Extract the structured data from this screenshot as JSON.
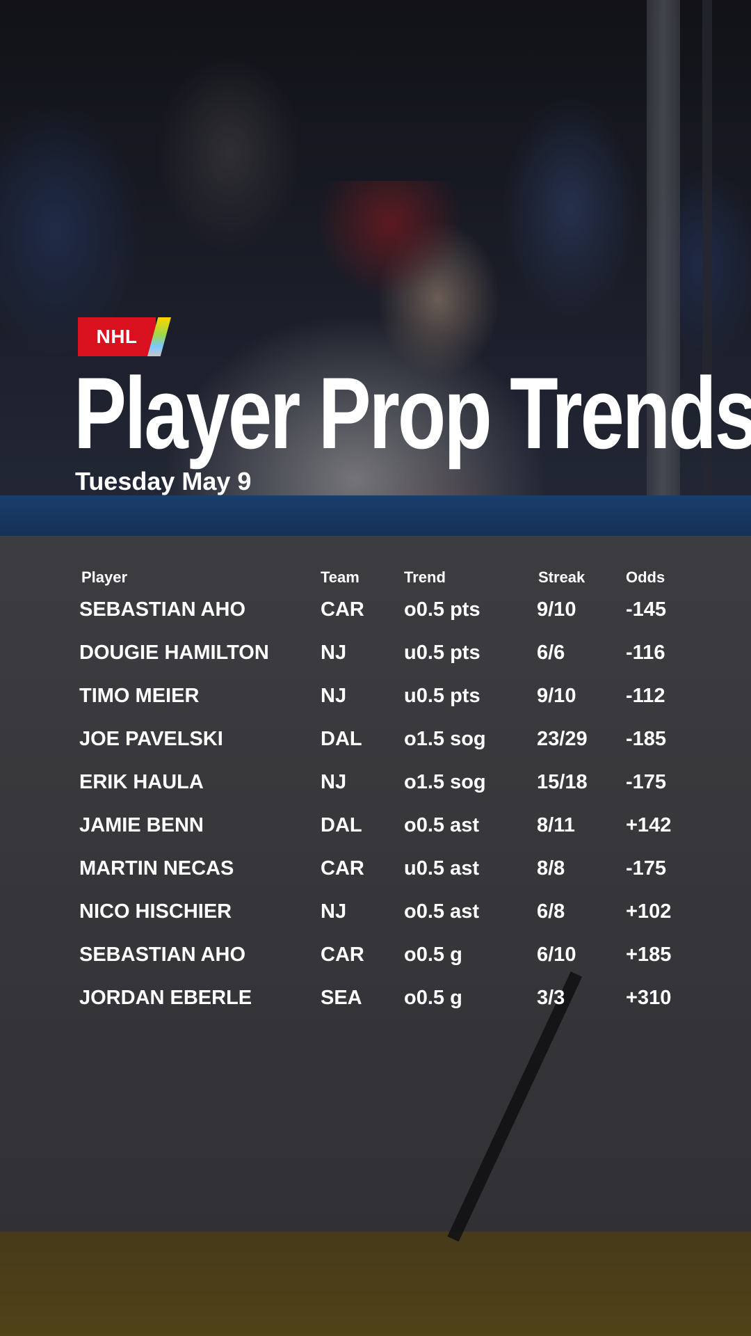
{
  "badge": {
    "league": "NHL"
  },
  "header": {
    "title": "Player Prop Trends",
    "date": "Tuesday May 9"
  },
  "table": {
    "columns": [
      "Player",
      "Team",
      "Trend",
      "Streak",
      "Odds"
    ],
    "rows": [
      {
        "player": "SEBASTIAN AHO",
        "team": "CAR",
        "trend": "o0.5 pts",
        "streak": "9/10",
        "odds": "-145"
      },
      {
        "player": "DOUGIE HAMILTON",
        "team": "NJ",
        "trend": "u0.5 pts",
        "streak": "6/6",
        "odds": "-116"
      },
      {
        "player": "TIMO MEIER",
        "team": "NJ",
        "trend": "u0.5 pts",
        "streak": "9/10",
        "odds": "-112"
      },
      {
        "player": "JOE PAVELSKI",
        "team": "DAL",
        "trend": "o1.5 sog",
        "streak": "23/29",
        "odds": "-185"
      },
      {
        "player": "ERIK HAULA",
        "team": "NJ",
        "trend": "o1.5 sog",
        "streak": "15/18",
        "odds": "-175"
      },
      {
        "player": "JAMIE BENN",
        "team": "DAL",
        "trend": "o0.5 ast",
        "streak": "8/11",
        "odds": "+142"
      },
      {
        "player": "MARTIN NECAS",
        "team": "CAR",
        "trend": "u0.5 ast",
        "streak": "8/8",
        "odds": "-175"
      },
      {
        "player": "NICO HISCHIER",
        "team": "NJ",
        "trend": "o0.5 ast",
        "streak": "6/8",
        "odds": "+102"
      },
      {
        "player": "SEBASTIAN AHO",
        "team": "CAR",
        "trend": "o0.5 g",
        "streak": "6/10",
        "odds": "+185"
      },
      {
        "player": "JORDAN EBERLE",
        "team": "SEA",
        "trend": "o0.5 g",
        "streak": "3/3",
        "odds": "+310"
      }
    ]
  },
  "colors": {
    "badge_red": "#d9101e",
    "text": "#ffffff"
  },
  "background": {
    "image": "hockey-player-celebration-photo"
  }
}
